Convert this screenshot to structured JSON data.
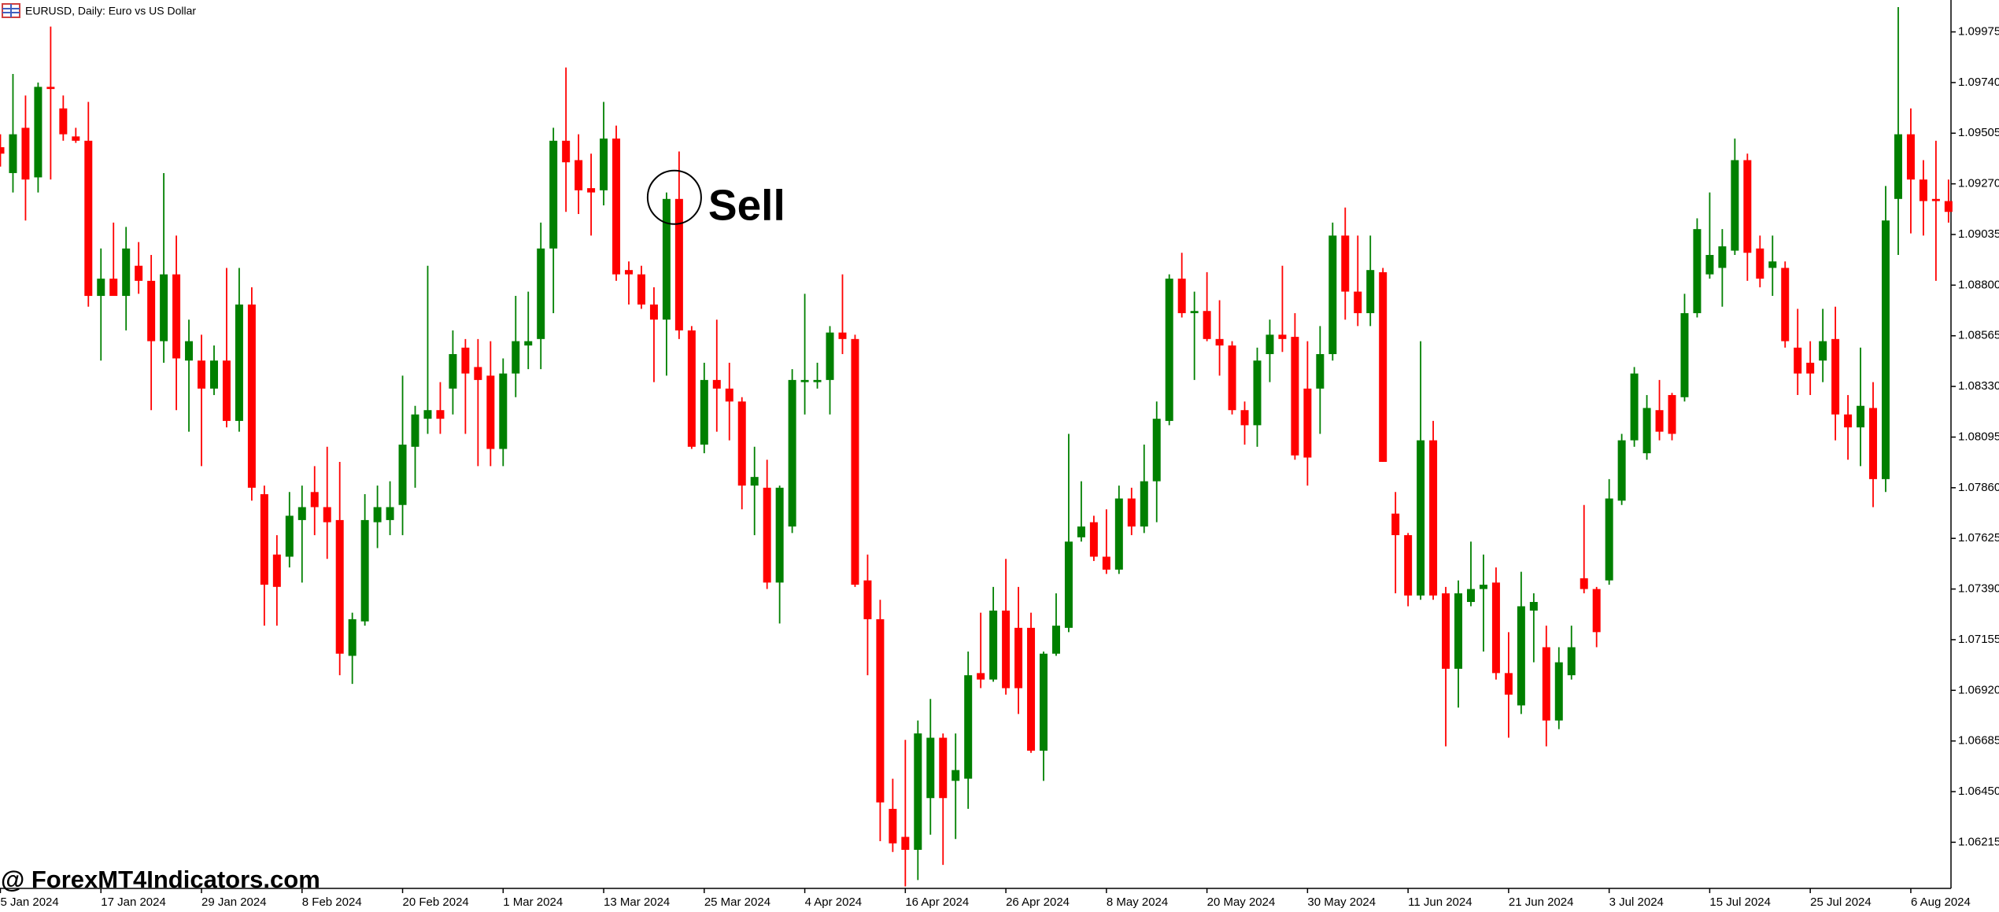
{
  "chart_data": {
    "type": "candlestick",
    "title": "EURUSD, Daily:  Euro vs US Dollar",
    "annotation": "Sell",
    "watermark": "@ ForexMT4Indicators.com",
    "up_color": "#008000",
    "down_color": "#ff0000",
    "ylim": [
      1.06001,
      1.10123
    ],
    "yticks": [
      1.09975,
      {
        "value": 1.0974,
        "label": "1.09740"
      },
      1.09505,
      {
        "value": 1.0927,
        "label": "1.09270"
      },
      1.09035,
      {
        "value": 1.088,
        "label": "1.08800"
      },
      1.08565,
      {
        "value": 1.0833,
        "label": "1.08330"
      },
      1.08095,
      {
        "value": 1.0786,
        "label": "1.07860"
      },
      1.07625,
      {
        "value": 1.0739,
        "label": "1.07390"
      },
      1.07155,
      {
        "value": 1.0692,
        "label": "1.06920"
      },
      1.06685,
      {
        "value": 1.0645,
        "label": "1.06450"
      },
      1.06215
    ],
    "categories": [
      "5 Jan 2024",
      null,
      null,
      null,
      null,
      null,
      null,
      null,
      "17 Jan 2024",
      null,
      null,
      null,
      null,
      null,
      null,
      null,
      "29 Jan 2024",
      null,
      null,
      null,
      null,
      null,
      null,
      null,
      "8 Feb 2024",
      null,
      null,
      null,
      null,
      null,
      null,
      null,
      "20 Feb 2024",
      null,
      null,
      null,
      null,
      null,
      null,
      null,
      "1 Mar 2024",
      null,
      null,
      null,
      null,
      null,
      null,
      null,
      "13 Mar 2024",
      null,
      null,
      null,
      null,
      null,
      null,
      null,
      "25 Mar 2024",
      null,
      null,
      null,
      null,
      null,
      null,
      null,
      "4 Apr 2024",
      null,
      null,
      null,
      null,
      null,
      null,
      null,
      "16 Apr 2024",
      null,
      null,
      null,
      null,
      null,
      null,
      null,
      "26 Apr 2024",
      null,
      null,
      null,
      null,
      null,
      null,
      null,
      "8 May 2024",
      null,
      null,
      null,
      null,
      null,
      null,
      null,
      "20 May 2024",
      null,
      null,
      null,
      null,
      null,
      null,
      null,
      "30 May 2024",
      null,
      null,
      null,
      null,
      null,
      null,
      null,
      "11 Jun 2024",
      null,
      null,
      null,
      null,
      null,
      null,
      null,
      "21 Jun 2024",
      null,
      null,
      null,
      null,
      null,
      null,
      null,
      "3 Jul 2024",
      null,
      null,
      null,
      null,
      null,
      null,
      null,
      "15 Jul 2024",
      null,
      null,
      null,
      null,
      null,
      null,
      null,
      "25 Jul 2024",
      null,
      null,
      null,
      null,
      null,
      null,
      null,
      "6 Aug 2024",
      null,
      null,
      null
    ],
    "candles": [
      [
        1.0944,
        1.095,
        1.0935,
        1.0941
      ],
      [
        1.0932,
        1.0978,
        1.0923,
        1.095
      ],
      [
        1.0953,
        1.0968,
        1.091,
        1.0929
      ],
      [
        1.093,
        1.0974,
        1.0923,
        1.0972
      ],
      [
        1.0972,
        1.1,
        1.0929,
        1.0971
      ],
      [
        1.0962,
        1.0968,
        1.0947,
        1.095
      ],
      [
        1.0949,
        1.0953,
        1.0946,
        1.0947
      ],
      [
        1.0947,
        1.0965,
        1.087,
        1.0875
      ],
      [
        1.0875,
        1.0897,
        1.0845,
        1.0883
      ],
      [
        1.0883,
        1.0909,
        1.0876,
        1.0875
      ],
      [
        1.0875,
        1.0907,
        1.0859,
        1.0897
      ],
      [
        1.0889,
        1.09,
        1.0876,
        1.0882
      ],
      [
        1.0882,
        1.0894,
        1.0822,
        1.0854
      ],
      [
        1.0854,
        1.0932,
        1.0844,
        1.0885
      ],
      [
        1.0885,
        1.0903,
        1.0822,
        1.0846
      ],
      [
        1.0845,
        1.0864,
        1.0812,
        1.0854
      ],
      [
        1.0845,
        1.0857,
        1.0796,
        1.0832
      ],
      [
        1.0832,
        1.0852,
        1.0829,
        1.0845
      ],
      [
        1.0845,
        1.0888,
        1.0814,
        1.0817
      ],
      [
        1.0817,
        1.0888,
        1.0812,
        1.0871
      ],
      [
        1.0871,
        1.0879,
        1.078,
        1.0786
      ],
      [
        1.0783,
        1.0787,
        1.0722,
        1.0741
      ],
      [
        1.0755,
        1.0764,
        1.0722,
        1.074
      ],
      [
        1.0754,
        1.0784,
        1.0749,
        1.0773
      ],
      [
        1.0771,
        1.0787,
        1.0742,
        1.0777
      ],
      [
        1.0784,
        1.0796,
        1.0764,
        1.0777
      ],
      [
        1.0777,
        1.0805,
        1.0753,
        1.077
      ],
      [
        1.0771,
        1.0798,
        1.0699,
        1.0709
      ],
      [
        1.0708,
        1.0728,
        1.0695,
        1.0725
      ],
      [
        1.0724,
        1.0783,
        1.0722,
        1.0771
      ],
      [
        1.077,
        1.0787,
        1.0758,
        1.0777
      ],
      [
        1.0771,
        1.0789,
        1.0764,
        1.0777
      ],
      [
        1.0778,
        1.0838,
        1.0764,
        1.0806
      ],
      [
        1.0805,
        1.0824,
        1.0786,
        1.082
      ],
      [
        1.0818,
        1.0889,
        1.0811,
        1.0822
      ],
      [
        1.0822,
        1.0835,
        1.0811,
        1.0818
      ],
      [
        1.0832,
        1.0859,
        1.082,
        1.0848
      ],
      [
        1.0851,
        1.0855,
        1.0811,
        1.0839
      ],
      [
        1.0842,
        1.0855,
        1.0796,
        1.0836
      ],
      [
        1.0838,
        1.0854,
        1.0796,
        1.0804
      ],
      [
        1.0804,
        1.0846,
        1.0796,
        1.0839
      ],
      [
        1.0839,
        1.0875,
        1.0828,
        1.0854
      ],
      [
        1.0852,
        1.0877,
        1.0841,
        1.0854
      ],
      [
        1.0855,
        1.0909,
        1.0841,
        1.0897
      ],
      [
        1.0897,
        1.0953,
        1.0867,
        1.0947
      ],
      [
        1.0947,
        1.0981,
        1.0914,
        1.0937
      ],
      [
        1.0938,
        1.095,
        1.0913,
        1.0924
      ],
      [
        1.0925,
        1.0941,
        1.0903,
        1.0923
      ],
      [
        1.0924,
        1.0965,
        1.0917,
        1.0948
      ],
      [
        1.0948,
        1.0954,
        1.0882,
        1.0885
      ],
      [
        1.0887,
        1.0891,
        1.0871,
        1.0885
      ],
      [
        1.0885,
        1.0889,
        1.0869,
        1.0871
      ],
      [
        1.0871,
        1.0879,
        1.0835,
        1.0864
      ],
      [
        1.0864,
        1.0923,
        1.0838,
        1.092
      ],
      [
        1.092,
        1.0942,
        1.0855,
        1.0859
      ],
      [
        1.0859,
        1.0861,
        1.0804,
        1.0805
      ],
      [
        1.0806,
        1.0844,
        1.0802,
        1.0836
      ],
      [
        1.0836,
        1.0864,
        1.0812,
        1.0832
      ],
      [
        1.0832,
        1.0844,
        1.0808,
        1.0826
      ],
      [
        1.0826,
        1.0828,
        1.0776,
        1.0787
      ],
      [
        1.0787,
        1.0805,
        1.0764,
        1.0791
      ],
      [
        1.0786,
        1.0799,
        1.0739,
        1.0742
      ],
      [
        1.0742,
        1.0787,
        1.0723,
        1.0786
      ],
      [
        1.0768,
        1.0841,
        1.0765,
        1.0836
      ],
      [
        1.0835,
        1.0876,
        1.082,
        1.0836
      ],
      [
        1.0835,
        1.0844,
        1.0832,
        1.0836
      ],
      [
        1.0836,
        1.0861,
        1.082,
        1.0858
      ],
      [
        1.0858,
        1.0885,
        1.0848,
        1.0855
      ],
      [
        1.0855,
        1.0857,
        1.074,
        1.0741
      ],
      [
        1.0743,
        1.0755,
        1.0699,
        1.0725
      ],
      [
        1.0725,
        1.0734,
        1.0622,
        1.064
      ],
      [
        1.0637,
        1.0651,
        1.0617,
        1.0621
      ],
      [
        1.0624,
        1.0669,
        1.0601,
        1.0618
      ],
      [
        1.0618,
        1.0678,
        1.0604,
        1.0672
      ],
      [
        1.0642,
        1.0688,
        1.0625,
        1.067
      ],
      [
        1.067,
        1.0672,
        1.0611,
        1.0642
      ],
      [
        1.065,
        1.0672,
        1.0623,
        1.0655
      ],
      [
        1.0651,
        1.071,
        1.0637,
        1.0699
      ],
      [
        1.07,
        1.0728,
        1.0693,
        1.0697
      ],
      [
        1.0697,
        1.074,
        1.0696,
        1.0729
      ],
      [
        1.0729,
        1.0753,
        1.069,
        1.0693
      ],
      [
        1.0721,
        1.074,
        1.0681,
        1.0693
      ],
      [
        1.0721,
        1.0728,
        1.0663,
        1.0664
      ],
      [
        1.0664,
        1.071,
        1.065,
        1.0709
      ],
      [
        1.0709,
        1.0737,
        1.0708,
        1.0722
      ],
      [
        1.0721,
        1.0811,
        1.0719,
        1.0761
      ],
      [
        1.0763,
        1.0789,
        1.0761,
        1.0768
      ],
      [
        1.077,
        1.0773,
        1.0752,
        1.0754
      ],
      [
        1.0754,
        1.0776,
        1.0746,
        1.0748
      ],
      [
        1.0748,
        1.0787,
        1.0746,
        1.0781
      ],
      [
        1.0781,
        1.0786,
        1.0764,
        1.0768
      ],
      [
        1.0768,
        1.0806,
        1.0765,
        1.0789
      ],
      [
        1.0789,
        1.0826,
        1.077,
        1.0818
      ],
      [
        1.0817,
        1.0885,
        1.0815,
        1.0883
      ],
      [
        1.0883,
        1.0895,
        1.0865,
        1.0867
      ],
      [
        1.0867,
        1.0877,
        1.0836,
        1.0868
      ],
      [
        1.0868,
        1.0886,
        1.0854,
        1.0855
      ],
      [
        1.0855,
        1.0873,
        1.0838,
        1.0852
      ],
      [
        1.0852,
        1.0854,
        1.082,
        1.0822
      ],
      [
        1.0822,
        1.0826,
        1.0806,
        1.0815
      ],
      [
        1.0815,
        1.0851,
        1.0805,
        1.0845
      ],
      [
        1.0848,
        1.0864,
        1.0835,
        1.0857
      ],
      [
        1.0857,
        1.0889,
        1.0849,
        1.0855
      ],
      [
        1.0856,
        1.0867,
        1.0799,
        1.0801
      ],
      [
        1.0832,
        1.0854,
        1.0787,
        1.08
      ],
      [
        1.0832,
        1.0861,
        1.0811,
        1.0848
      ],
      [
        1.0848,
        1.0909,
        1.0845,
        1.0903
      ],
      [
        1.0903,
        1.0916,
        1.0864,
        1.0877
      ],
      [
        1.0877,
        1.0903,
        1.0861,
        1.0867
      ],
      [
        1.0867,
        1.0903,
        1.0861,
        1.0887
      ],
      [
        1.0886,
        1.0888,
        1.0798,
        1.0798
      ],
      [
        1.0774,
        1.0784,
        1.0737,
        1.0764
      ],
      [
        1.0764,
        1.0765,
        1.0731,
        1.0736
      ],
      [
        1.0736,
        1.0854,
        1.0734,
        1.0808
      ],
      [
        1.0808,
        1.0817,
        1.0734,
        1.0736
      ],
      [
        1.0737,
        1.074,
        1.0666,
        1.0702
      ],
      [
        1.0702,
        1.0743,
        1.0684,
        1.0737
      ],
      [
        1.0733,
        1.0761,
        1.0731,
        1.0739
      ],
      [
        1.0739,
        1.0755,
        1.071,
        1.0741
      ],
      [
        1.0742,
        1.0749,
        1.0697,
        1.07
      ],
      [
        1.07,
        1.0719,
        1.067,
        1.069
      ],
      [
        1.0685,
        1.0747,
        1.0681,
        1.0731
      ],
      [
        1.0729,
        1.0737,
        1.0705,
        1.0733
      ],
      [
        1.0712,
        1.0722,
        1.0666,
        1.0678
      ],
      [
        1.0678,
        1.0712,
        1.0674,
        1.0705
      ],
      [
        1.0699,
        1.0722,
        1.0697,
        1.0712
      ],
      [
        1.0744,
        1.0778,
        1.0737,
        1.0739
      ],
      [
        1.0739,
        1.074,
        1.0712,
        1.0719
      ],
      [
        1.0743,
        1.079,
        1.0741,
        1.0781
      ],
      [
        1.078,
        1.0811,
        1.0778,
        1.0808
      ],
      [
        1.0808,
        1.0842,
        1.0805,
        1.0839
      ],
      [
        1.0802,
        1.0829,
        1.0799,
        1.0823
      ],
      [
        1.0822,
        1.0836,
        1.0808,
        1.0812
      ],
      [
        1.0829,
        1.083,
        1.0808,
        1.0811
      ],
      [
        1.0828,
        1.0876,
        1.0826,
        1.0867
      ],
      [
        1.0867,
        1.0911,
        1.0865,
        1.0906
      ],
      [
        1.0885,
        1.0923,
        1.0883,
        1.0894
      ],
      [
        1.0888,
        1.0906,
        1.087,
        1.0898
      ],
      [
        1.0896,
        1.0948,
        1.0894,
        1.0938
      ],
      [
        1.0938,
        1.0941,
        1.0882,
        1.0895
      ],
      [
        1.0897,
        1.0903,
        1.0879,
        1.0883
      ],
      [
        1.0888,
        1.0903,
        1.0875,
        1.0891
      ],
      [
        1.0888,
        1.0891,
        1.0851,
        1.0854
      ],
      [
        1.0851,
        1.0869,
        1.0829,
        1.0839
      ],
      [
        1.0844,
        1.0854,
        1.0829,
        1.0839
      ],
      [
        1.0845,
        1.0869,
        1.0835,
        1.0854
      ],
      [
        1.0855,
        1.087,
        1.0808,
        1.082
      ],
      [
        1.082,
        1.0829,
        1.0799,
        1.0814
      ],
      [
        1.0814,
        1.0851,
        1.0796,
        1.0824
      ],
      [
        1.0823,
        1.0835,
        1.0777,
        1.079
      ],
      [
        1.079,
        1.0926,
        1.0784,
        1.091
      ],
      [
        1.092,
        1.1009,
        1.0894,
        1.095
      ],
      [
        1.095,
        1.0962,
        1.0904,
        1.0929
      ],
      [
        1.0929,
        1.0938,
        1.0903,
        1.0919
      ],
      [
        1.092,
        1.0947,
        1.0882,
        1.0919
      ],
      [
        1.0919,
        1.0929,
        1.0909,
        1.0914
      ]
    ]
  }
}
